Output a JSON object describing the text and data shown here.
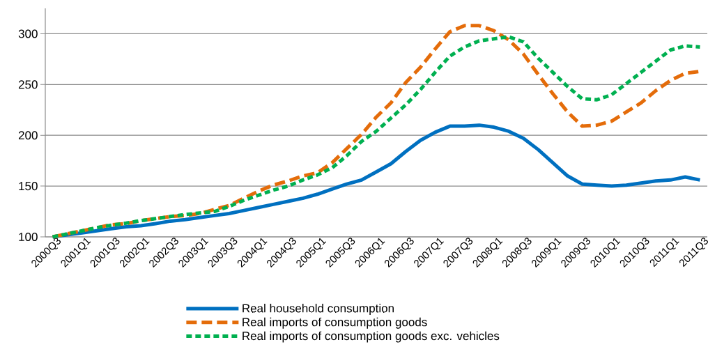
{
  "chart_data": {
    "type": "line",
    "categories": [
      "2000Q3",
      null,
      "2001Q1",
      null,
      "2001Q3",
      null,
      "2002Q1",
      null,
      "2002Q3",
      null,
      "2003Q1",
      null,
      "2003Q3",
      null,
      "2004Q1",
      null,
      "2004Q3",
      null,
      "2005Q1",
      null,
      "2005Q3",
      null,
      "2006Q1",
      null,
      "2006Q3",
      null,
      "2007Q1",
      null,
      "2007Q3",
      null,
      "2008Q1",
      null,
      "2008Q3",
      null,
      "2009Q1",
      null,
      "2009Q3",
      null,
      "2010Q1",
      null,
      "2010Q3",
      null,
      "2011Q1",
      null,
      "2011Q3"
    ],
    "series": [
      {
        "name": "Real household consumption",
        "color": "#0070c0",
        "line_style": "solid",
        "values": [
          100,
          102,
          104,
          106,
          108,
          110,
          111,
          113,
          115.5,
          117,
          119,
          121,
          123,
          126,
          129,
          132,
          135,
          138,
          142,
          147,
          152,
          156,
          164,
          172,
          184,
          195,
          203,
          209,
          209,
          210,
          208,
          204,
          197,
          186,
          173,
          160,
          152,
          151,
          150,
          151,
          153,
          155,
          156,
          159,
          156
        ]
      },
      {
        "name": "Real imports of consumption goods",
        "color": "#e46c0a",
        "line_style": "dashed",
        "values": [
          100,
          103,
          106,
          109,
          112,
          113,
          116,
          118,
          120,
          121,
          123,
          127,
          131,
          138,
          145,
          151,
          155,
          160,
          163,
          173,
          187,
          201,
          218,
          232,
          252,
          267,
          285,
          302,
          308,
          308,
          303,
          294,
          280,
          260,
          241,
          223,
          209,
          210,
          214,
          223,
          232,
          244,
          254,
          261,
          263
        ]
      },
      {
        "name": "Real imports of consumption goods exc. vehicles",
        "color": "#00b050",
        "line_style": "dotted",
        "values": [
          100,
          103,
          106,
          109,
          111.5,
          113.5,
          116,
          118,
          120,
          122,
          123.5,
          125,
          130,
          136,
          141,
          146,
          150,
          156,
          161,
          168,
          180,
          194,
          204,
          217,
          230,
          245,
          262,
          278,
          287,
          293,
          295,
          297,
          292,
          276,
          262,
          248,
          236,
          235,
          240,
          251,
          262,
          273,
          284,
          288,
          287
        ]
      }
    ],
    "ylim": [
      100,
      325
    ],
    "yticks": [
      100,
      150,
      200,
      250,
      300
    ],
    "grid": "y",
    "legend": "bottom"
  }
}
